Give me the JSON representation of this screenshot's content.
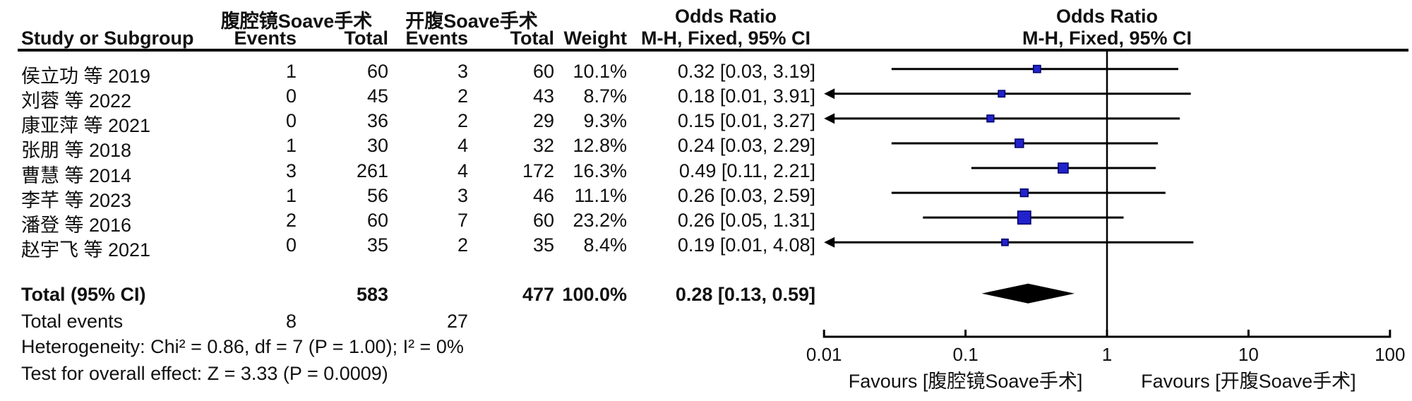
{
  "header": {
    "group1": "腹腔镜Soave手术",
    "group2": "开腹Soave手术",
    "or_title_numeric": "Odds Ratio",
    "or_title_plot": "Odds Ratio",
    "col_study": "Study or Subgroup",
    "col_events1": "Events",
    "col_total1": "Total",
    "col_events2": "Events",
    "col_total2": "Total",
    "col_weight": "Weight",
    "col_ci_numeric": "M-H, Fixed, 95% CI",
    "col_ci_plot": "M-H, Fixed, 95% CI"
  },
  "chart_data": {
    "type": "forest",
    "effect_measure": "Odds Ratio, M-H, Fixed, 95% CI",
    "axis": {
      "scale": "log",
      "min": 0.01,
      "max": 100,
      "ticks": [
        0.01,
        0.1,
        1,
        10,
        100
      ],
      "tick_labels": [
        "0.01",
        "0.1",
        "1",
        "10",
        "100"
      ]
    },
    "favours_left": "Favours [腹腔镜Soave手术]",
    "favours_right": "Favours [开腹Soave手术]",
    "studies": [
      {
        "name": "侯立功 等 2019",
        "events1": "1",
        "total1": "60",
        "events2": "3",
        "total2": "60",
        "weight": "10.1%",
        "ci_label": "0.32 [0.03, 3.19]",
        "or": 0.32,
        "lo": 0.03,
        "hi": 3.19,
        "weight_pct": 10.1,
        "arrow_left": false
      },
      {
        "name": "刘蓉 等 2022",
        "events1": "0",
        "total1": "45",
        "events2": "2",
        "total2": "43",
        "weight": "8.7%",
        "ci_label": "0.18 [0.01, 3.91]",
        "or": 0.18,
        "lo": 0.01,
        "hi": 3.91,
        "weight_pct": 8.7,
        "arrow_left": true
      },
      {
        "name": "康亚萍 等 2021",
        "events1": "0",
        "total1": "36",
        "events2": "2",
        "total2": "29",
        "weight": "9.3%",
        "ci_label": "0.15 [0.01, 3.27]",
        "or": 0.15,
        "lo": 0.01,
        "hi": 3.27,
        "weight_pct": 9.3,
        "arrow_left": true
      },
      {
        "name": "张朋 等 2018",
        "events1": "1",
        "total1": "30",
        "events2": "4",
        "total2": "32",
        "weight": "12.8%",
        "ci_label": "0.24 [0.03, 2.29]",
        "or": 0.24,
        "lo": 0.03,
        "hi": 2.29,
        "weight_pct": 12.8,
        "arrow_left": false
      },
      {
        "name": "曹慧 等 2014",
        "events1": "3",
        "total1": "261",
        "events2": "4",
        "total2": "172",
        "weight": "16.3%",
        "ci_label": "0.49 [0.11, 2.21]",
        "or": 0.49,
        "lo": 0.11,
        "hi": 2.21,
        "weight_pct": 16.3,
        "arrow_left": false
      },
      {
        "name": "李芊 等 2023",
        "events1": "1",
        "total1": "56",
        "events2": "3",
        "total2": "46",
        "weight": "11.1%",
        "ci_label": "0.26 [0.03, 2.59]",
        "or": 0.26,
        "lo": 0.03,
        "hi": 2.59,
        "weight_pct": 11.1,
        "arrow_left": false
      },
      {
        "name": "潘登 等 2016",
        "events1": "2",
        "total1": "60",
        "events2": "7",
        "total2": "60",
        "weight": "23.2%",
        "ci_label": "0.26 [0.05, 1.31]",
        "or": 0.26,
        "lo": 0.05,
        "hi": 1.31,
        "weight_pct": 23.2,
        "arrow_left": false
      },
      {
        "name": "赵宇飞 等 2021",
        "events1": "0",
        "total1": "35",
        "events2": "2",
        "total2": "35",
        "weight": "8.4%",
        "ci_label": "0.19 [0.01, 4.08]",
        "or": 0.19,
        "lo": 0.01,
        "hi": 4.08,
        "weight_pct": 8.4,
        "arrow_left": true
      }
    ],
    "total": {
      "label": "Total (95% CI)",
      "total1": "583",
      "total2": "477",
      "weight": "100.0%",
      "ci_label": "0.28 [0.13, 0.59]",
      "or": 0.28,
      "lo": 0.13,
      "hi": 0.59
    },
    "total_events": {
      "label": "Total events",
      "events1": "8",
      "events2": "27"
    }
  },
  "footer": {
    "heterogeneity": "Heterogeneity: Chi² = 0.86, df = 7 (P = 1.00); I² = 0%",
    "overall_effect": "Test for overall effect: Z = 3.33 (P = 0.0009)"
  },
  "colors": {
    "square_fill": "#2222CC",
    "square_stroke": "#000066",
    "line": "#000000",
    "diamond": "#000000",
    "text": "#111111"
  }
}
